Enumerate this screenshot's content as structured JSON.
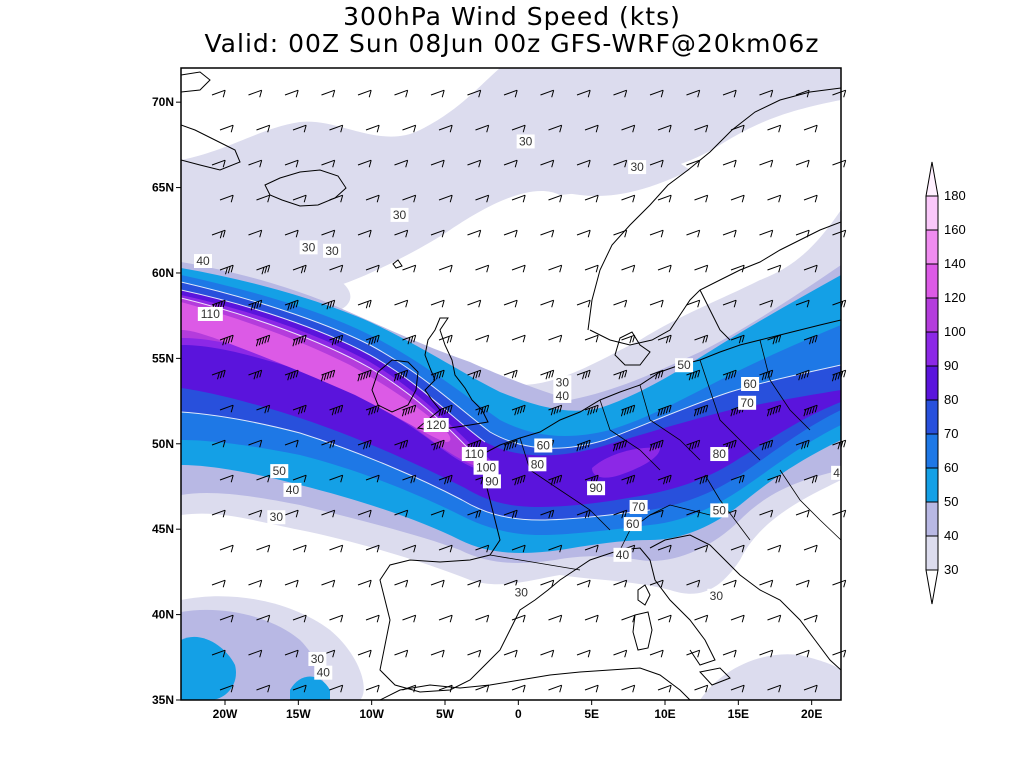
{
  "title": {
    "line1": "300hPa Wind Speed (kts)",
    "line2": "Valid: 00Z Sun 08Jun 00z GFS-WRF@20km06z"
  },
  "map": {
    "lon_range": [
      -23,
      22
    ],
    "lat_range": [
      35,
      72
    ],
    "lat_ticks": [
      {
        "value": 70,
        "label": "70N"
      },
      {
        "value": 65,
        "label": "65N"
      },
      {
        "value": 60,
        "label": "60N"
      },
      {
        "value": 55,
        "label": "55N"
      },
      {
        "value": 50,
        "label": "50N"
      },
      {
        "value": 45,
        "label": "45N"
      },
      {
        "value": 40,
        "label": "40N"
      },
      {
        "value": 35,
        "label": "35N"
      }
    ],
    "lon_ticks": [
      {
        "value": -20,
        "label": "20W"
      },
      {
        "value": -15,
        "label": "15W"
      },
      {
        "value": -10,
        "label": "10W"
      },
      {
        "value": -5,
        "label": "5W"
      },
      {
        "value": 0,
        "label": "0"
      },
      {
        "value": 5,
        "label": "5E"
      },
      {
        "value": 10,
        "label": "10E"
      },
      {
        "value": 15,
        "label": "15E"
      },
      {
        "value": 20,
        "label": "20E"
      }
    ]
  },
  "colorbar": {
    "levels": [
      {
        "label": "30",
        "color": "#dcdcee"
      },
      {
        "label": "40",
        "color": "#b8b8e4"
      },
      {
        "label": "50",
        "color": "#14a0e6"
      },
      {
        "label": "60",
        "color": "#1e78e6"
      },
      {
        "label": "70",
        "color": "#2850dc"
      },
      {
        "label": "80",
        "color": "#5a14dc"
      },
      {
        "label": "90",
        "color": "#8c28e6"
      },
      {
        "label": "100",
        "color": "#b43cdc"
      },
      {
        "label": "120",
        "color": "#dc5ae6"
      },
      {
        "label": "140",
        "color": "#f08cf0"
      },
      {
        "label": "160",
        "color": "#fac8fa"
      },
      {
        "label": "180",
        "color": "#fff0ff"
      }
    ]
  },
  "contour_labels": [
    {
      "text": "30",
      "lon": 0.5,
      "lat": 67.7
    },
    {
      "text": "30",
      "lon": 8.1,
      "lat": 66.2
    },
    {
      "text": "30",
      "lon": -8.1,
      "lat": 63.4
    },
    {
      "text": "30",
      "lon": -14.3,
      "lat": 61.5
    },
    {
      "text": "30",
      "lon": -12.7,
      "lat": 61.3
    },
    {
      "text": "40",
      "lon": -21.5,
      "lat": 60.7
    },
    {
      "text": "110",
      "lon": -21,
      "lat": 57.6
    },
    {
      "text": "50",
      "lon": 11.3,
      "lat": 54.6
    },
    {
      "text": "60",
      "lon": 15.8,
      "lat": 53.5
    },
    {
      "text": "70",
      "lon": 15.6,
      "lat": 52.4
    },
    {
      "text": "30",
      "lon": 3,
      "lat": 53.6
    },
    {
      "text": "40",
      "lon": 3,
      "lat": 52.8
    },
    {
      "text": "120",
      "lon": -5.6,
      "lat": 51.1
    },
    {
      "text": "60",
      "lon": 1.7,
      "lat": 49.9
    },
    {
      "text": "110",
      "lon": -3,
      "lat": 49.4
    },
    {
      "text": "100",
      "lon": -2.2,
      "lat": 48.6
    },
    {
      "text": "80",
      "lon": 1.3,
      "lat": 48.8
    },
    {
      "text": "90",
      "lon": -1.8,
      "lat": 47.8
    },
    {
      "text": "90",
      "lon": 5.3,
      "lat": 47.4
    },
    {
      "text": "80",
      "lon": 13.7,
      "lat": 49.4
    },
    {
      "text": "70",
      "lon": 8.2,
      "lat": 46.3
    },
    {
      "text": "60",
      "lon": 7.8,
      "lat": 45.3
    },
    {
      "text": "50",
      "lon": 13.7,
      "lat": 46.1
    },
    {
      "text": "40",
      "lon": 7.1,
      "lat": 43.5
    },
    {
      "text": "50",
      "lon": -16.3,
      "lat": 48.4
    },
    {
      "text": "40",
      "lon": -15.4,
      "lat": 47.3
    },
    {
      "text": "30",
      "lon": -16.5,
      "lat": 45.7
    },
    {
      "text": "30",
      "lon": 0.2,
      "lat": 41.3
    },
    {
      "text": "30",
      "lon": 13.5,
      "lat": 41.1
    },
    {
      "text": "30",
      "lon": -13.7,
      "lat": 37.4
    },
    {
      "text": "40",
      "lon": -13.3,
      "lat": 36.6
    },
    {
      "text": "4",
      "lon": 21.7,
      "lat": 48.3
    }
  ]
}
